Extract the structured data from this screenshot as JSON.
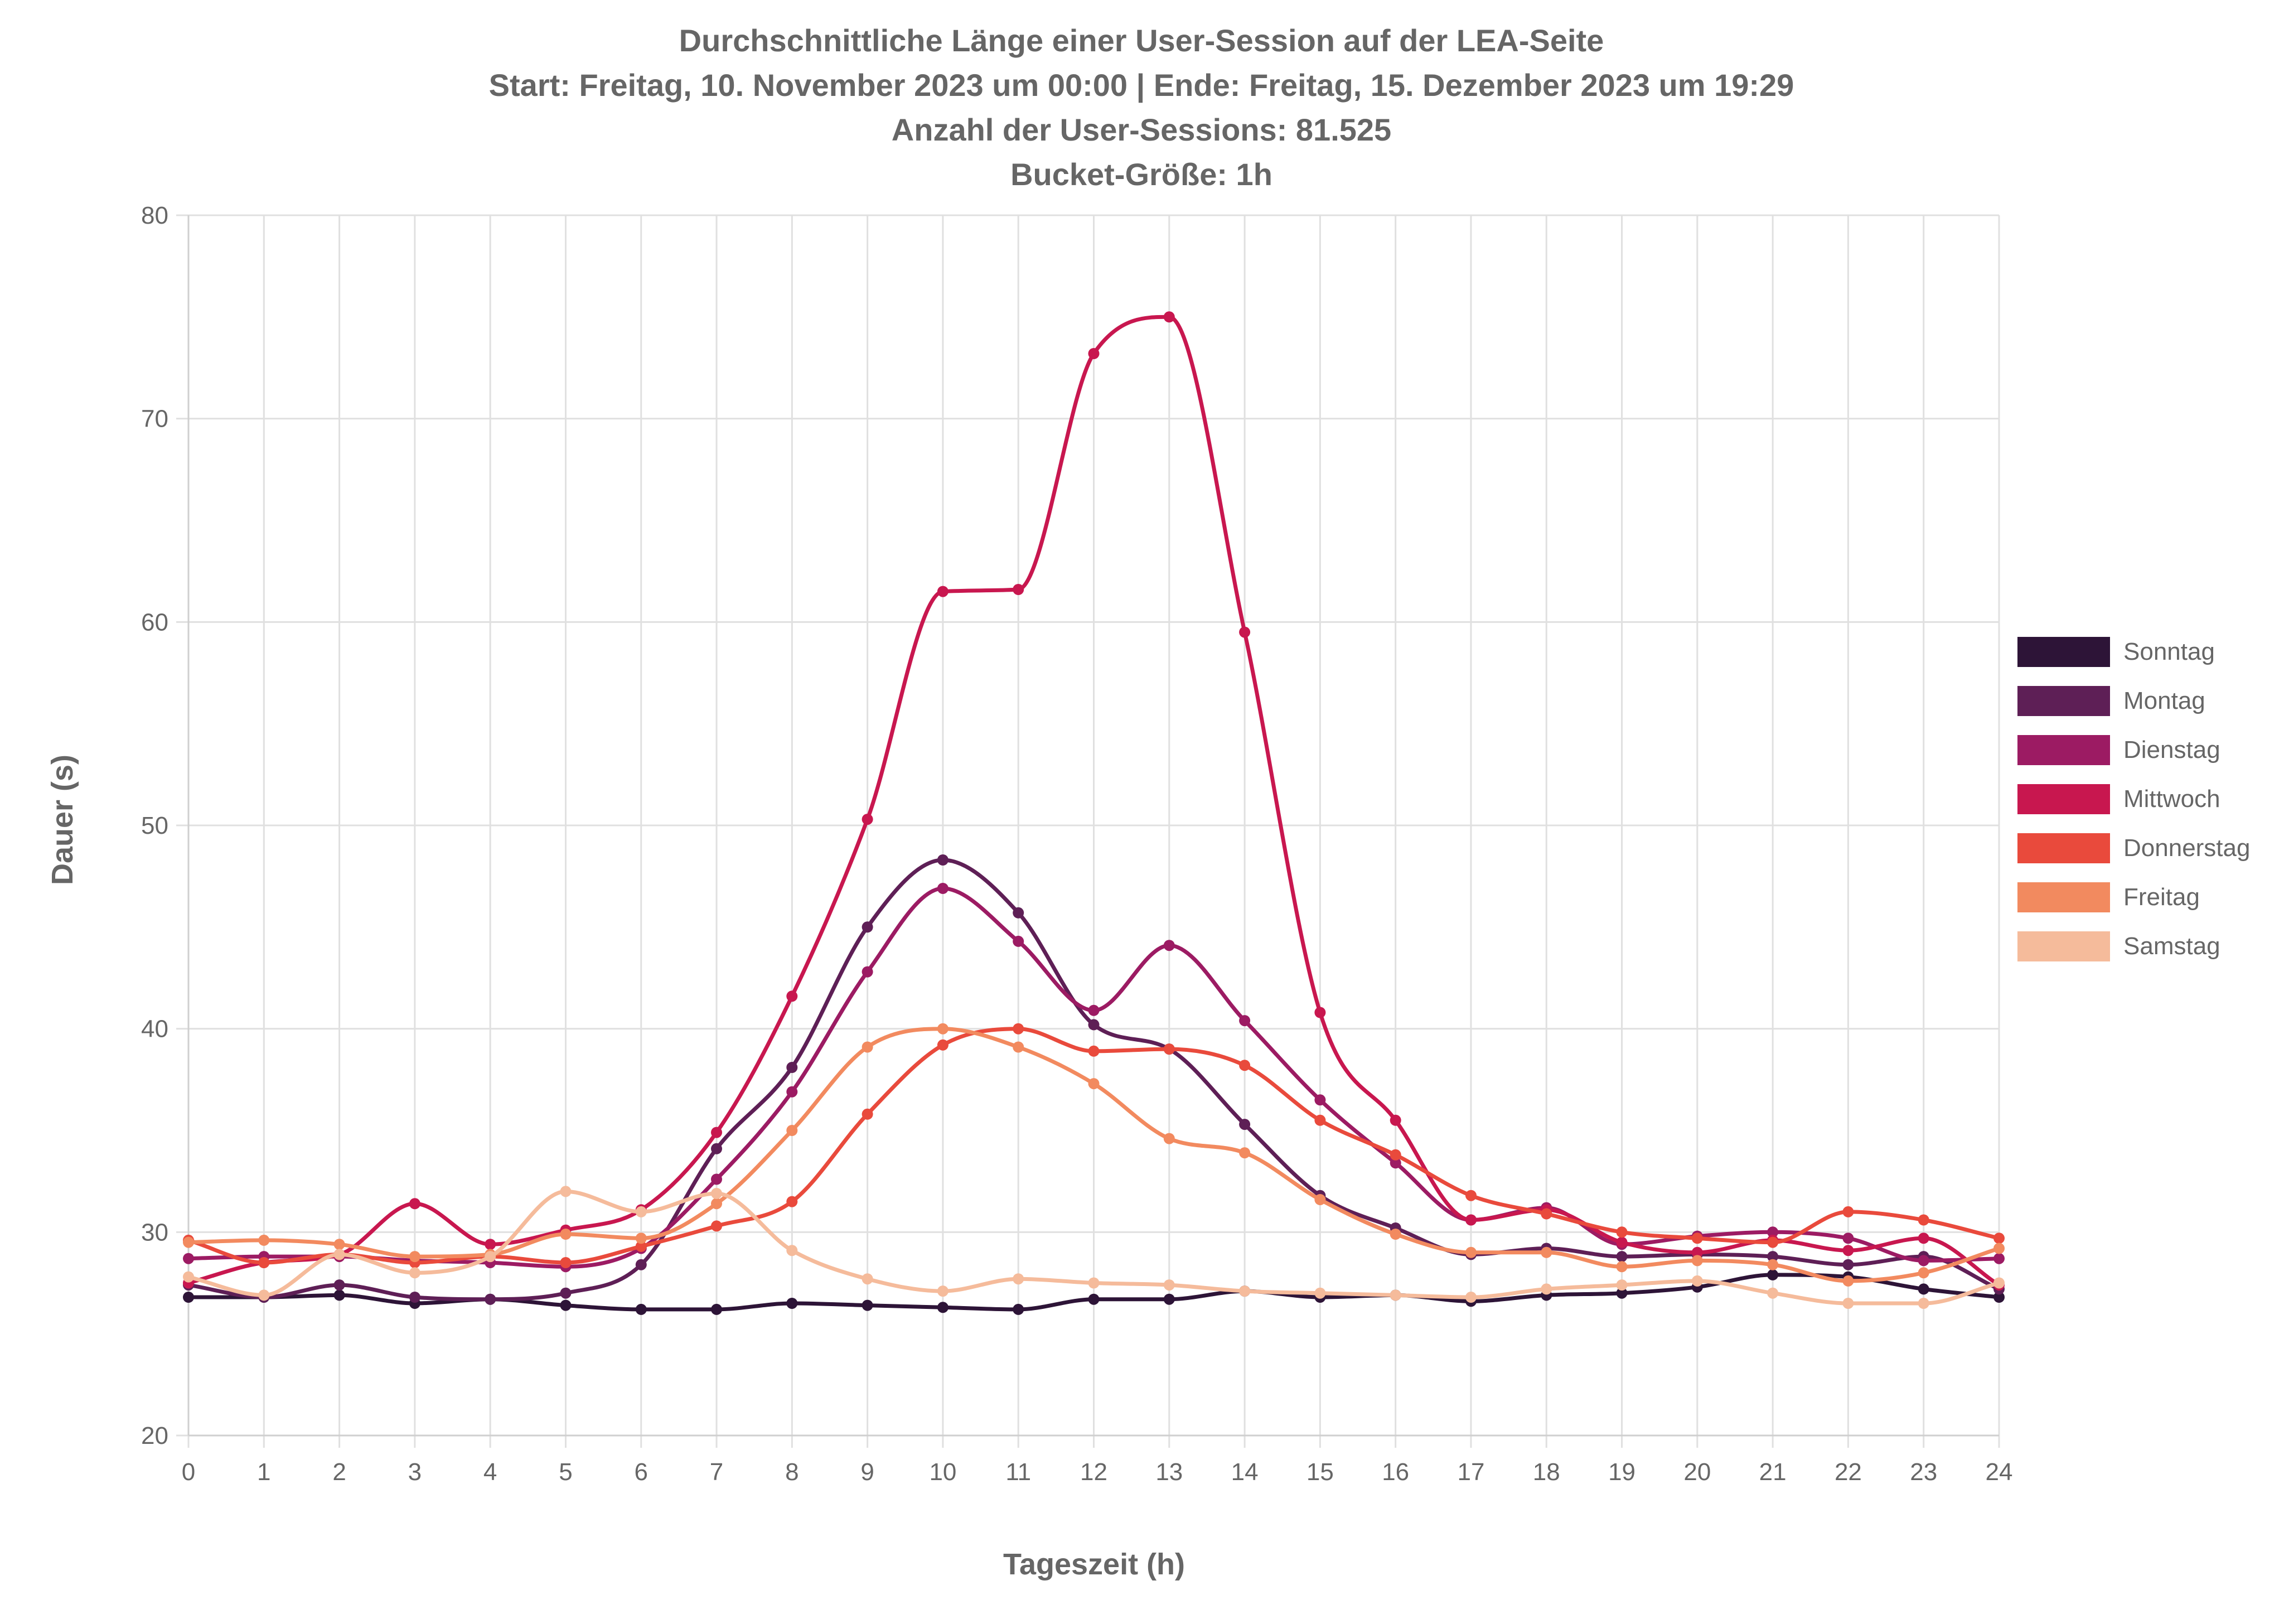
{
  "chart_data": {
    "type": "line",
    "title": [
      "Durchschnittliche Länge einer User-Session auf der LEA-Seite",
      "Start: Freitag, 10. November 2023 um 00:00 | Ende: Freitag, 15. Dezember 2023 um 19:29",
      "Anzahl der User-Sessions: 81.525",
      "Bucket-Größe: 1h"
    ],
    "xlabel": "Tageszeit (h)",
    "ylabel": "Dauer (s)",
    "x": [
      0,
      1,
      2,
      3,
      4,
      5,
      6,
      7,
      8,
      9,
      10,
      11,
      12,
      13,
      14,
      15,
      16,
      17,
      18,
      19,
      20,
      21,
      22,
      23,
      24
    ],
    "x_ticks": [
      "0",
      "1",
      "2",
      "3",
      "4",
      "5",
      "6",
      "7",
      "8",
      "9",
      "10",
      "11",
      "12",
      "13",
      "14",
      "15",
      "16",
      "17",
      "18",
      "19",
      "20",
      "21",
      "22",
      "23",
      "24"
    ],
    "ylim": [
      20,
      80
    ],
    "y_ticks": [
      "20",
      "30",
      "40",
      "50",
      "60",
      "70",
      "80"
    ],
    "grid": true,
    "legend_position": "right",
    "series": [
      {
        "name": "Sonntag",
        "color": "#2d1437",
        "values": [
          26.8,
          26.8,
          26.9,
          26.5,
          26.7,
          26.4,
          26.2,
          26.2,
          26.5,
          26.4,
          26.3,
          26.2,
          26.7,
          26.7,
          27.1,
          26.8,
          26.9,
          26.6,
          26.9,
          27.0,
          27.3,
          27.9,
          27.8,
          27.2,
          26.8
        ]
      },
      {
        "name": "Montag",
        "color": "#5e1f56",
        "values": [
          27.4,
          26.8,
          27.4,
          26.8,
          26.7,
          27.0,
          28.4,
          34.1,
          38.1,
          45.0,
          48.3,
          45.7,
          40.2,
          39.0,
          35.3,
          31.8,
          30.2,
          28.9,
          29.2,
          28.8,
          28.9,
          28.8,
          28.4,
          28.8,
          27.2
        ]
      },
      {
        "name": "Dienstag",
        "color": "#9c1b63",
        "values": [
          28.7,
          28.8,
          28.8,
          28.6,
          28.5,
          28.3,
          29.2,
          32.6,
          36.9,
          42.8,
          46.9,
          44.3,
          40.9,
          44.1,
          40.4,
          36.5,
          33.4,
          30.6,
          31.2,
          29.4,
          29.8,
          30.0,
          29.7,
          28.6,
          28.7
        ]
      },
      {
        "name": "Mittwoch",
        "color": "#c8174f",
        "values": [
          27.5,
          28.5,
          28.9,
          31.4,
          29.4,
          30.1,
          31.1,
          34.9,
          41.6,
          50.3,
          61.5,
          61.6,
          73.2,
          75.0,
          59.5,
          40.8,
          35.5,
          30.6,
          31.1,
          29.5,
          29.0,
          29.6,
          29.1,
          29.7,
          27.4
        ]
      },
      {
        "name": "Donnerstag",
        "color": "#e94a3c",
        "values": [
          29.6,
          28.5,
          28.9,
          28.5,
          28.8,
          28.5,
          29.3,
          30.3,
          31.5,
          35.8,
          39.2,
          40.0,
          38.9,
          39.0,
          38.2,
          35.5,
          33.8,
          31.8,
          30.9,
          30.0,
          29.7,
          29.5,
          31.0,
          30.6,
          29.7
        ]
      },
      {
        "name": "Freitag",
        "color": "#f28a5f",
        "values": [
          29.5,
          29.6,
          29.4,
          28.8,
          28.9,
          29.9,
          29.7,
          31.4,
          35.0,
          39.1,
          40.0,
          39.1,
          37.3,
          34.6,
          33.9,
          31.6,
          29.9,
          29.0,
          29.0,
          28.3,
          28.6,
          28.4,
          27.6,
          28.0,
          29.2
        ]
      },
      {
        "name": "Samstag",
        "color": "#f5bb9b",
        "values": [
          27.8,
          26.9,
          28.9,
          28.0,
          28.8,
          32.0,
          31.0,
          31.9,
          29.1,
          27.7,
          27.1,
          27.7,
          27.5,
          27.4,
          27.1,
          27.0,
          26.9,
          26.8,
          27.2,
          27.4,
          27.6,
          27.0,
          26.5,
          26.5,
          27.5
        ]
      }
    ]
  }
}
